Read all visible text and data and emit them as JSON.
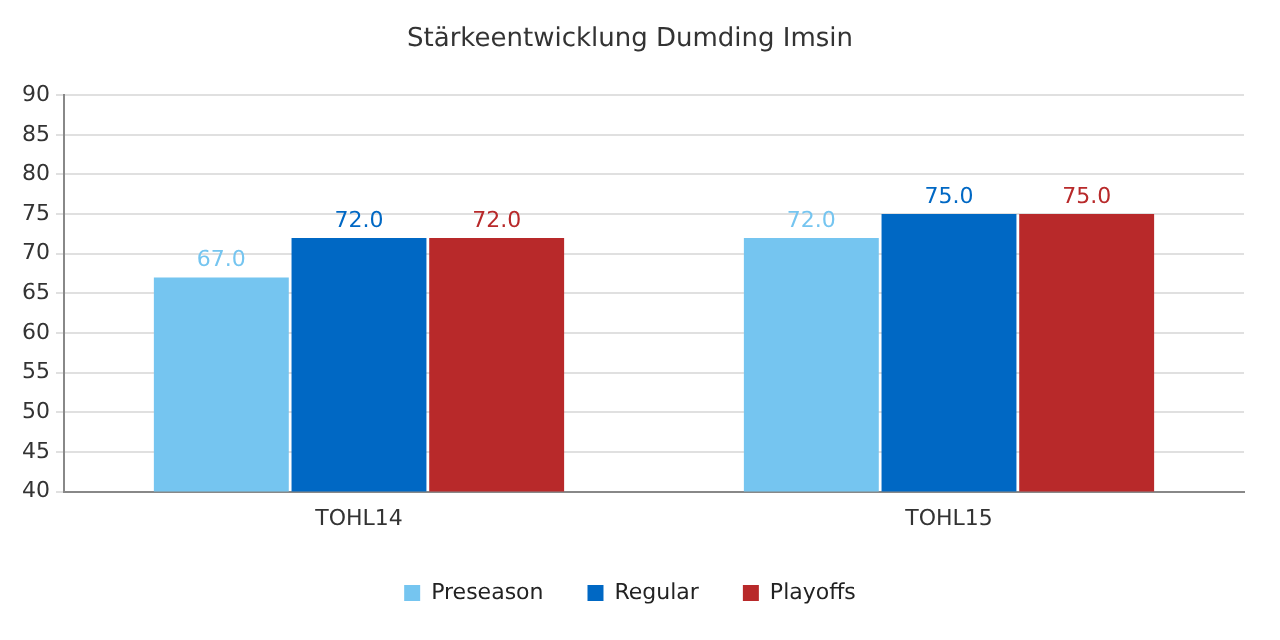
{
  "chart_data": {
    "type": "bar",
    "title": "Stärkeentwicklung Dumding Imsin",
    "categories": [
      "TOHL14",
      "TOHL15"
    ],
    "series": [
      {
        "name": "Preseason",
        "color": "#75c5f0",
        "values": [
          67,
          72
        ],
        "value_labels": [
          "67.0",
          "72.0"
        ]
      },
      {
        "name": "Regular",
        "color": "#0068c4",
        "values": [
          72,
          75
        ],
        "value_labels": [
          "72.0",
          "75.0"
        ]
      },
      {
        "name": "Playoffs",
        "color": "#b8292a",
        "values": [
          72,
          75
        ],
        "value_labels": [
          "72.0",
          "75.0"
        ]
      }
    ],
    "ylim": [
      40,
      90
    ],
    "yticks": [
      40,
      45,
      50,
      55,
      60,
      65,
      70,
      75,
      80,
      85,
      90
    ],
    "grid": "y",
    "legend": "bottom"
  }
}
